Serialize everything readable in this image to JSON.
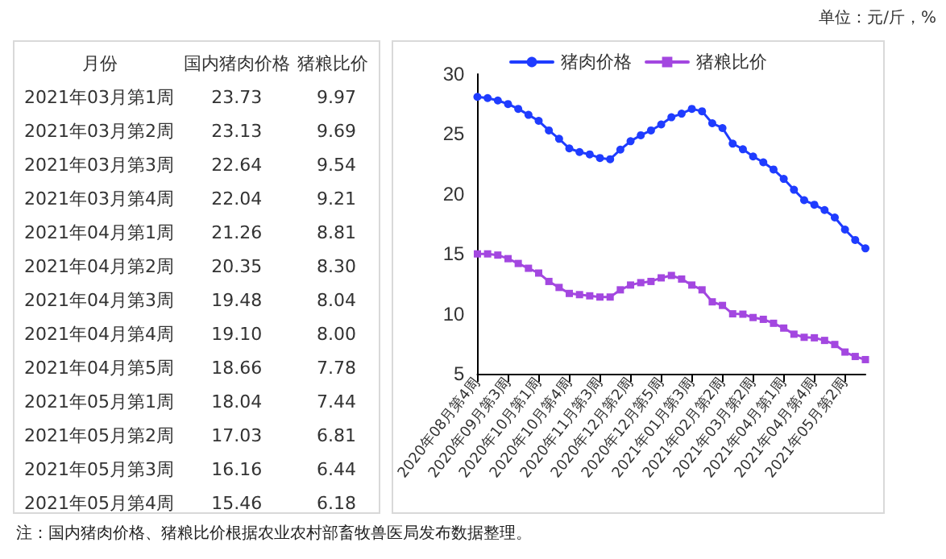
{
  "chart_data": [
    {
      "type": "other",
      "xlabel": "月份",
      "categories": [
        "2021年03月第1周",
        "2021年03月第2周",
        "2021年03月第3周",
        "2021年03月第4周",
        "2021年04月第1周",
        "2021年04月第2周",
        "2021年04月第3周",
        "2021年04月第4周",
        "2021年04月第5周",
        "2021年05月第1周",
        "2021年05月第2周",
        "2021年05月第3周",
        "2021年05月第4周"
      ],
      "series": [
        {
          "name": "国内猪肉价格",
          "values": [
            23.73,
            23.13,
            22.64,
            22.04,
            21.26,
            20.35,
            19.48,
            19.1,
            18.66,
            18.04,
            17.03,
            16.16,
            15.46
          ],
          "value_labels": [
            "23.73",
            "23.13",
            "22.64",
            "22.04",
            "21.26",
            "20.35",
            "19.48",
            "19.10",
            "18.66",
            "18.04",
            "17.03",
            "16.16",
            "15.46"
          ]
        },
        {
          "name": "猪粮比价",
          "values": [
            9.97,
            9.69,
            9.54,
            9.21,
            8.81,
            8.3,
            8.04,
            8.0,
            7.78,
            7.44,
            6.81,
            6.44,
            6.18
          ],
          "value_labels": [
            "9.97",
            "9.69",
            "9.54",
            "9.21",
            "8.81",
            "8.30",
            "8.04",
            "8.00",
            "7.78",
            "7.44",
            "6.81",
            "6.44",
            "6.18"
          ]
        }
      ],
      "annotations": [
        "注：国内猪肉价格、猪粮比价根据农业农村部畜牧兽医局发布数据整理。"
      ]
    },
    {
      "type": "line",
      "subtitle": "单位：元/斤，%",
      "categories": [
        "2020年08月第4周",
        null,
        null,
        "2020年09月第3周",
        null,
        null,
        "2020年10月第1周",
        null,
        null,
        "2020年10月第4周",
        null,
        null,
        "2020年11月第3周",
        null,
        null,
        "2020年12月第2周",
        null,
        null,
        "2020年12月第5周",
        null,
        null,
        "2021年01月第3周",
        null,
        null,
        "2021年02月第2周",
        null,
        null,
        "2021年03月第2周",
        null,
        null,
        "2021年04月第1周",
        null,
        null,
        "2021年04月第4周",
        null,
        null,
        "2021年05月第2周",
        null,
        null
      ],
      "series": [
        {
          "name": "猪肉价格",
          "color": "#1f3cff",
          "marker": "circle",
          "values": [
            28.1,
            28.0,
            27.8,
            27.5,
            27.1,
            26.6,
            26.1,
            25.3,
            24.6,
            23.8,
            23.5,
            23.3,
            23.0,
            22.9,
            23.7,
            24.4,
            24.9,
            25.3,
            25.8,
            26.4,
            26.7,
            27.1,
            26.9,
            25.9,
            25.5,
            24.2,
            23.73,
            23.13,
            22.64,
            22.04,
            21.26,
            20.35,
            19.48,
            19.1,
            18.66,
            18.04,
            17.03,
            16.16,
            15.46
          ]
        },
        {
          "name": "猪粮比价",
          "color": "#a347e0",
          "marker": "square",
          "values": [
            15.0,
            15.0,
            14.9,
            14.6,
            14.2,
            13.8,
            13.4,
            12.7,
            12.2,
            11.7,
            11.6,
            11.5,
            11.4,
            11.4,
            12.0,
            12.4,
            12.6,
            12.7,
            13.0,
            13.2,
            12.9,
            12.4,
            12.0,
            11.0,
            10.7,
            10.0,
            9.97,
            9.69,
            9.54,
            9.21,
            8.81,
            8.3,
            8.04,
            8.0,
            7.78,
            7.44,
            6.81,
            6.44,
            6.18
          ]
        }
      ],
      "ylim": [
        5,
        30
      ],
      "yticks": [
        5,
        10,
        15,
        20,
        25,
        30
      ],
      "legend": "top",
      "grid": false,
      "line_style": "solid"
    }
  ]
}
